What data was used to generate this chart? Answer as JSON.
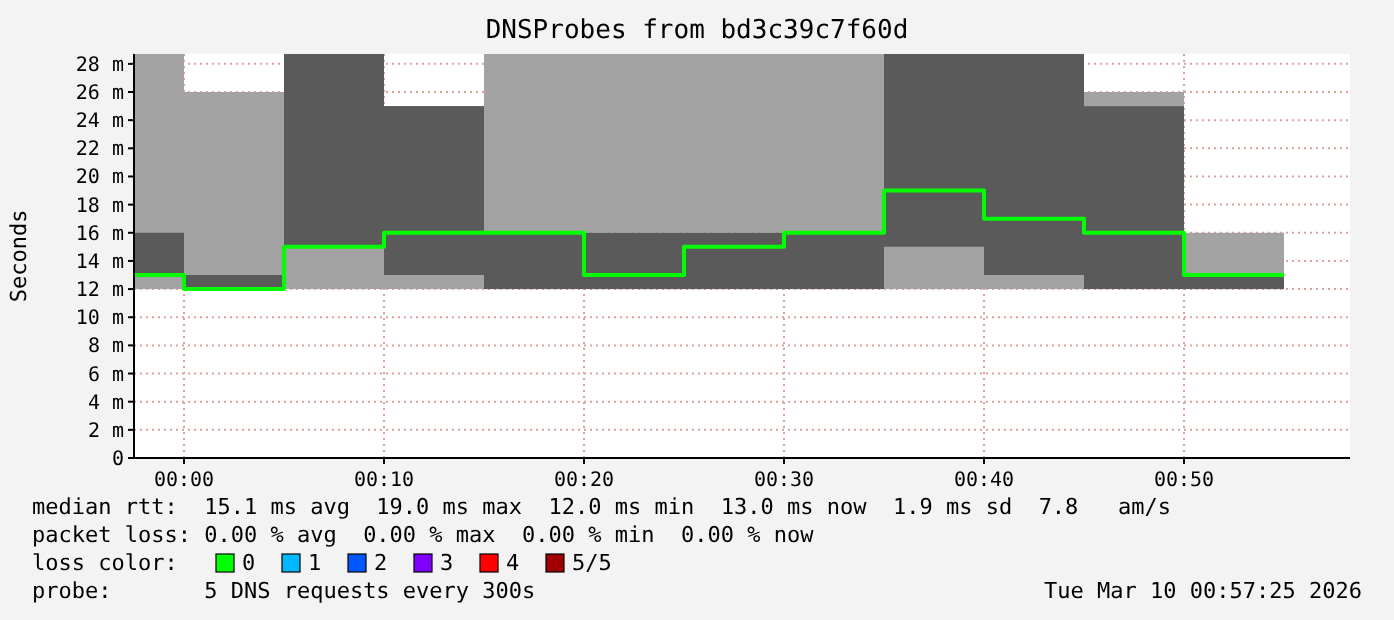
{
  "chart_data": {
    "type": "bar",
    "title": "DNSProbes from bd3c39c7f60d",
    "ylabel": "Seconds",
    "xlim": [
      -2.5,
      58.3
    ],
    "xticks": [
      {
        "value": 0,
        "label": "00:00"
      },
      {
        "value": 10,
        "label": "00:10"
      },
      {
        "value": 20,
        "label": "00:20"
      },
      {
        "value": 30,
        "label": "00:30"
      },
      {
        "value": 40,
        "label": "00:40"
      },
      {
        "value": 50,
        "label": "00:50"
      }
    ],
    "ylim": [
      0,
      28.7
    ],
    "yticks": [
      0,
      {
        "value": 2,
        "label": "2 m"
      },
      {
        "value": 4,
        "label": "4 m"
      },
      {
        "value": 6,
        "label": "6 m"
      },
      {
        "value": 8,
        "label": "8 m"
      },
      {
        "value": 10,
        "label": "10 m"
      },
      {
        "value": 12,
        "label": "12 m"
      },
      {
        "value": 14,
        "label": "14 m"
      },
      {
        "value": 16,
        "label": "16 m"
      },
      {
        "value": 18,
        "label": "18 m"
      },
      {
        "value": 20,
        "label": "20 m"
      },
      {
        "value": 22,
        "label": "22 m"
      },
      {
        "value": 24,
        "label": "24 m"
      },
      {
        "value": 26,
        "label": "26 m"
      },
      {
        "value": 28,
        "label": "28 m"
      }
    ],
    "grid": true,
    "series": [
      {
        "color": "#a3a3a3",
        "x": [
          0,
          5,
          10,
          15,
          20,
          25,
          30,
          35,
          40,
          45,
          50,
          55
        ],
        "base": [
          12,
          12,
          12,
          12,
          16,
          16,
          16,
          16,
          12,
          12,
          25,
          13
        ],
        "values": [
          16.7,
          14,
          3,
          1,
          12.7,
          12.7,
          12.7,
          12.7,
          3,
          1,
          1,
          3
        ]
      },
      {
        "color": "#5a5a5a",
        "x": [
          0,
          5,
          10,
          15,
          20,
          25,
          30,
          35,
          40,
          45,
          50,
          55
        ],
        "base": [
          13,
          12,
          15,
          13,
          12,
          12,
          12,
          12,
          15,
          13,
          12,
          12
        ],
        "values": [
          3,
          1,
          13.7,
          12,
          4,
          4,
          4,
          4,
          13.7,
          15.7,
          13,
          1
        ]
      },
      {
        "type": "step",
        "color": "#00ff00",
        "x": [
          -2.5,
          0,
          5,
          10,
          15,
          20,
          25,
          30,
          35,
          40,
          45,
          50,
          55
        ],
        "values": [
          13,
          13,
          12,
          15,
          16,
          16,
          13,
          15,
          16,
          19,
          17,
          16,
          13
        ]
      }
    ],
    "annotations": [
      "median rtt:  15.1 ms avg  19.0 ms max  12.0 ms min  13.0 ms now  1.9 ms sd  7.8   am/s",
      "packet loss: 0.00 % avg  0.00 % max  0.00 % min  0.00 % now",
      "loss color:",
      "0",
      "1",
      "2",
      "3",
      "4",
      "5/5",
      "probe:       5 DNS requests every 300s",
      "Tue Mar 10 00:57:25 2026"
    ]
  }
}
